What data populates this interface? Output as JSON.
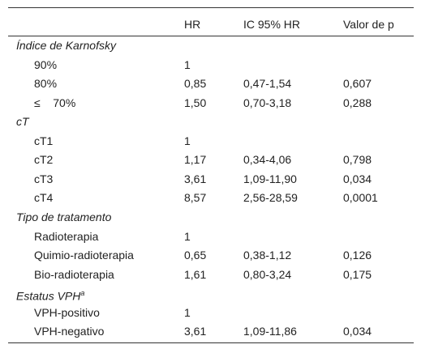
{
  "table": {
    "header": [
      "HR",
      "IC 95% HR",
      "Valor de p"
    ],
    "groups": [
      {
        "label": "Índice de Karnofsky",
        "rows": [
          [
            "90%",
            "1"
          ],
          [
            "80%",
            "0,85",
            "0,47-1,54",
            "0,607"
          ],
          [
            "≤    70%",
            "1,50",
            "0,70-3,18",
            "0,288"
          ]
        ]
      },
      {
        "label": "cT",
        "rows": [
          [
            "cT1",
            "1"
          ],
          [
            "cT2",
            "1,17",
            "0,34-4,06",
            "0,798"
          ],
          [
            "cT3",
            "3,61",
            "1,09-11,90",
            "0,034"
          ],
          [
            "cT4",
            "8,57",
            "2,56-28,59",
            "0,0001"
          ]
        ]
      },
      {
        "label": "Tipo de tratamento",
        "rows": [
          [
            "Radioterapia",
            "1"
          ],
          [
            "Quimio-radioterapia",
            "0,65",
            "0,38-1,12",
            "0,126"
          ],
          [
            "Bio-radioterapia",
            "1,61",
            "0,80-3,24",
            "0,175"
          ]
        ]
      },
      {
        "label": "Estatus VPH",
        "sup": "a",
        "rows": [
          [
            "VPH-positivo",
            "1"
          ],
          [
            "VPH-negativo",
            "3,61",
            "1,09-11,86",
            "0,034"
          ]
        ]
      }
    ]
  }
}
